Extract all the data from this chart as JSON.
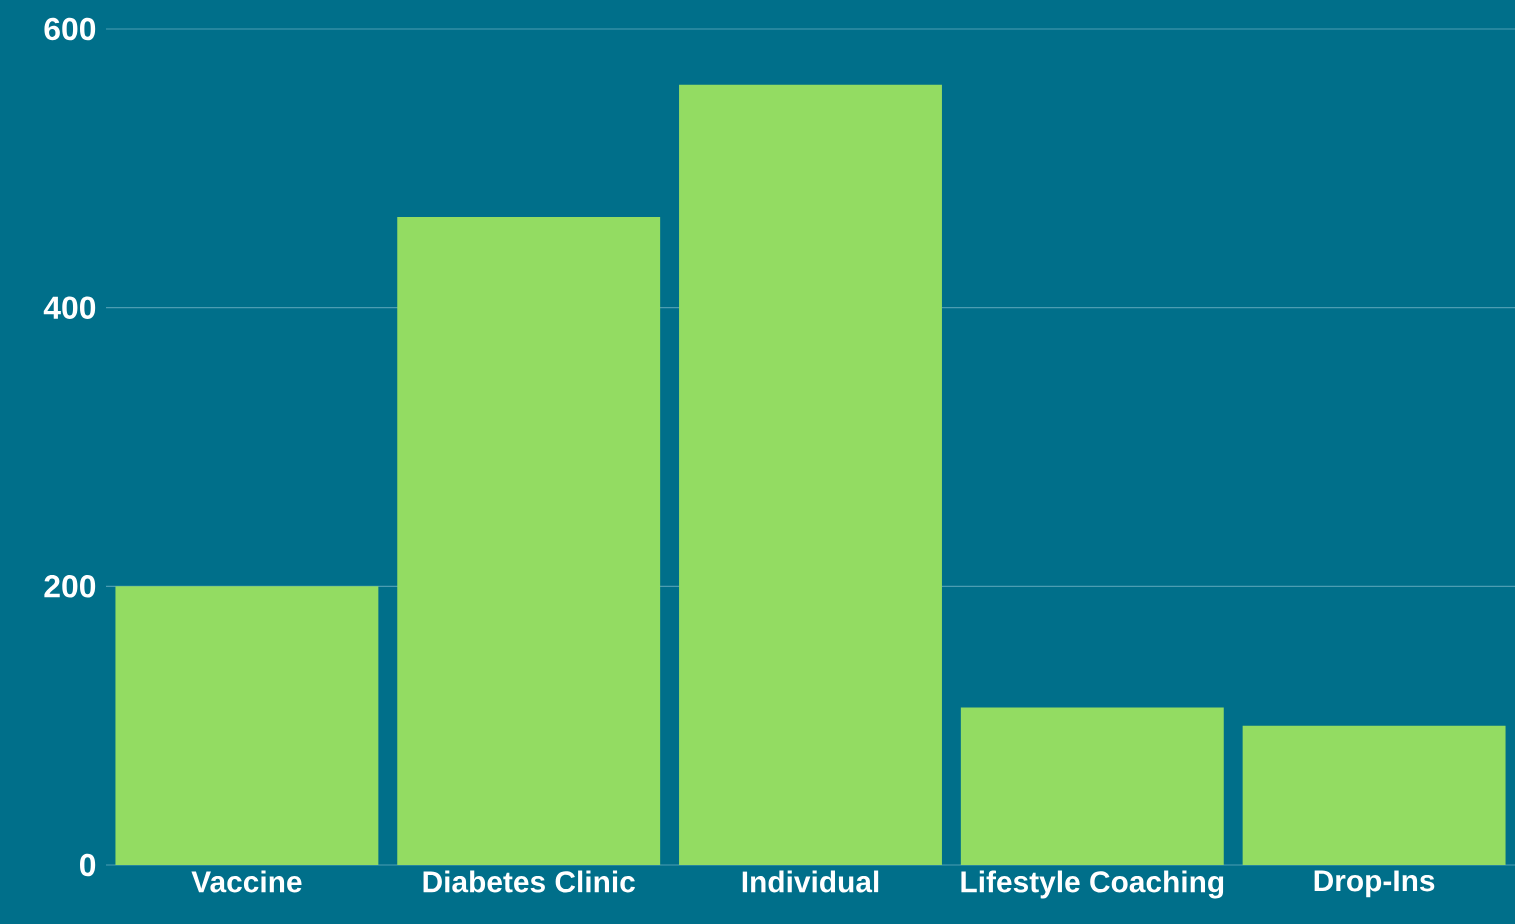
{
  "chart_data": {
    "type": "bar",
    "categories": [
      "Vaccine",
      "Diabetes Clinic",
      "Individual",
      "Lifestyle Coaching",
      "Drop-Ins"
    ],
    "values": [
      200,
      465,
      560,
      113,
      100
    ],
    "color": "#93dc62",
    "ylim": [
      0,
      600
    ],
    "yticks": [
      0,
      200,
      400,
      600
    ],
    "grid": "y"
  }
}
